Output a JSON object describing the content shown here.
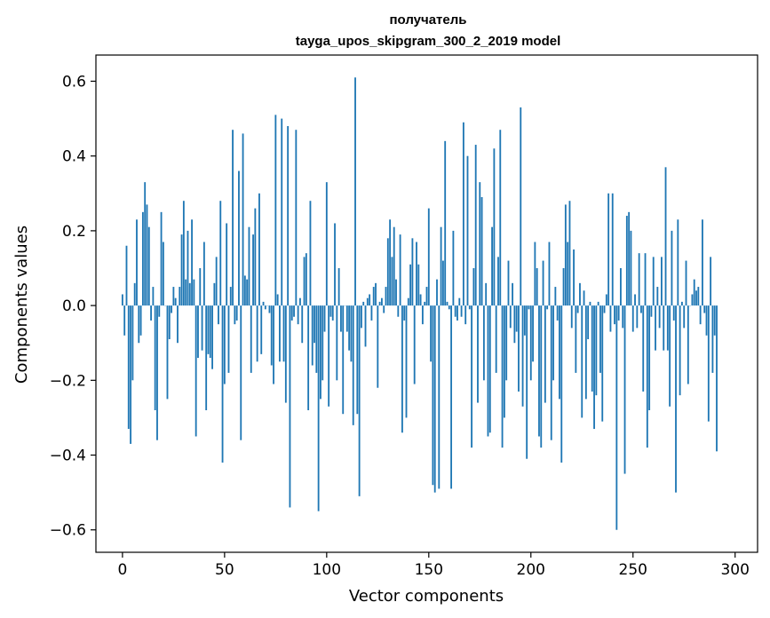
{
  "chart_data": {
    "type": "bar",
    "title_line1": "получатель",
    "title_line2": "tayga_upos_skipgram_300_2_2019 model",
    "xlabel": "Vector components",
    "ylabel": "Components values",
    "xlim": [
      -13,
      311
    ],
    "ylim": [
      -0.66,
      0.67
    ],
    "xticks": [
      0,
      50,
      100,
      150,
      200,
      250,
      300
    ],
    "yticks": [
      -0.6,
      -0.4,
      -0.2,
      0.0,
      0.2,
      0.4,
      0.6
    ],
    "ytick_labels": [
      "−0.6",
      "−0.4",
      "−0.2",
      "0.0",
      "0.2",
      "0.4",
      "0.6"
    ],
    "bar_color": "#1f77b4",
    "values": [
      0.03,
      -0.08,
      0.16,
      -0.33,
      -0.37,
      -0.2,
      0.06,
      0.23,
      -0.1,
      -0.08,
      0.25,
      0.33,
      0.27,
      0.21,
      -0.04,
      0.05,
      -0.28,
      -0.36,
      -0.03,
      0.25,
      0.17,
      0.0,
      -0.25,
      -0.09,
      -0.02,
      0.05,
      0.02,
      -0.1,
      0.05,
      0.19,
      0.28,
      0.07,
      0.2,
      0.06,
      0.23,
      0.07,
      -0.35,
      -0.14,
      0.1,
      -0.12,
      0.17,
      -0.28,
      -0.13,
      -0.14,
      -0.17,
      0.06,
      0.13,
      -0.05,
      0.28,
      -0.42,
      -0.21,
      0.22,
      -0.18,
      0.05,
      0.47,
      -0.05,
      -0.04,
      0.36,
      -0.36,
      0.46,
      0.08,
      0.07,
      0.21,
      -0.18,
      0.19,
      0.26,
      -0.15,
      0.3,
      -0.13,
      0.01,
      -0.01,
      0.0,
      -0.02,
      -0.16,
      -0.21,
      0.51,
      0.03,
      -0.15,
      0.5,
      -0.15,
      -0.26,
      0.48,
      -0.54,
      -0.04,
      -0.03,
      0.47,
      -0.05,
      0.02,
      -0.1,
      0.13,
      0.14,
      -0.28,
      0.28,
      -0.16,
      -0.1,
      -0.18,
      -0.55,
      -0.25,
      -0.2,
      -0.07,
      0.33,
      -0.27,
      -0.03,
      -0.04,
      0.22,
      -0.2,
      0.1,
      -0.07,
      -0.29,
      0.0,
      -0.07,
      -0.12,
      -0.15,
      -0.32,
      0.61,
      -0.29,
      -0.51,
      -0.06,
      0.01,
      -0.11,
      0.02,
      0.03,
      -0.04,
      0.05,
      0.06,
      -0.22,
      0.01,
      0.02,
      -0.02,
      0.05,
      0.18,
      0.23,
      0.13,
      0.21,
      0.07,
      -0.03,
      0.19,
      -0.34,
      -0.04,
      -0.3,
      0.02,
      0.11,
      0.18,
      -0.21,
      0.17,
      0.11,
      0.03,
      -0.05,
      0.01,
      0.05,
      0.26,
      -0.15,
      -0.48,
      -0.5,
      0.07,
      -0.49,
      0.21,
      0.12,
      0.44,
      0.01,
      -0.01,
      -0.49,
      0.2,
      -0.03,
      -0.04,
      0.02,
      -0.03,
      0.49,
      -0.05,
      0.4,
      -0.01,
      -0.38,
      0.1,
      0.43,
      -0.26,
      0.33,
      0.29,
      -0.2,
      0.06,
      -0.35,
      -0.34,
      0.21,
      0.42,
      -0.18,
      0.13,
      0.47,
      -0.38,
      -0.3,
      -0.2,
      0.12,
      -0.06,
      0.06,
      -0.1,
      -0.07,
      -0.23,
      0.53,
      -0.27,
      -0.08,
      -0.41,
      -0.01,
      -0.2,
      -0.15,
      0.17,
      0.1,
      -0.35,
      -0.38,
      0.12,
      -0.26,
      -0.01,
      0.17,
      -0.36,
      -0.2,
      0.05,
      -0.04,
      -0.25,
      -0.42,
      0.1,
      0.27,
      0.17,
      0.28,
      -0.06,
      0.15,
      -0.18,
      -0.02,
      0.06,
      -0.3,
      0.04,
      -0.25,
      -0.09,
      0.01,
      -0.23,
      -0.33,
      -0.24,
      0.01,
      -0.18,
      -0.31,
      -0.02,
      0.03,
      0.3,
      -0.07,
      0.3,
      -0.05,
      -0.6,
      -0.04,
      0.1,
      -0.06,
      -0.45,
      0.24,
      0.25,
      0.2,
      -0.07,
      0.03,
      -0.06,
      0.14,
      -0.02,
      -0.23,
      0.14,
      -0.38,
      -0.28,
      -0.03,
      0.13,
      -0.12,
      0.05,
      -0.06,
      0.13,
      -0.12,
      0.37,
      -0.12,
      -0.27,
      0.2,
      -0.04,
      -0.5,
      0.23,
      -0.24,
      0.01,
      -0.06,
      0.12,
      -0.21,
      0.0,
      0.03,
      0.07,
      0.04,
      0.05,
      -0.05,
      0.23,
      -0.02,
      -0.08,
      -0.31,
      0.13,
      -0.18,
      -0.08,
      -0.39
    ]
  }
}
